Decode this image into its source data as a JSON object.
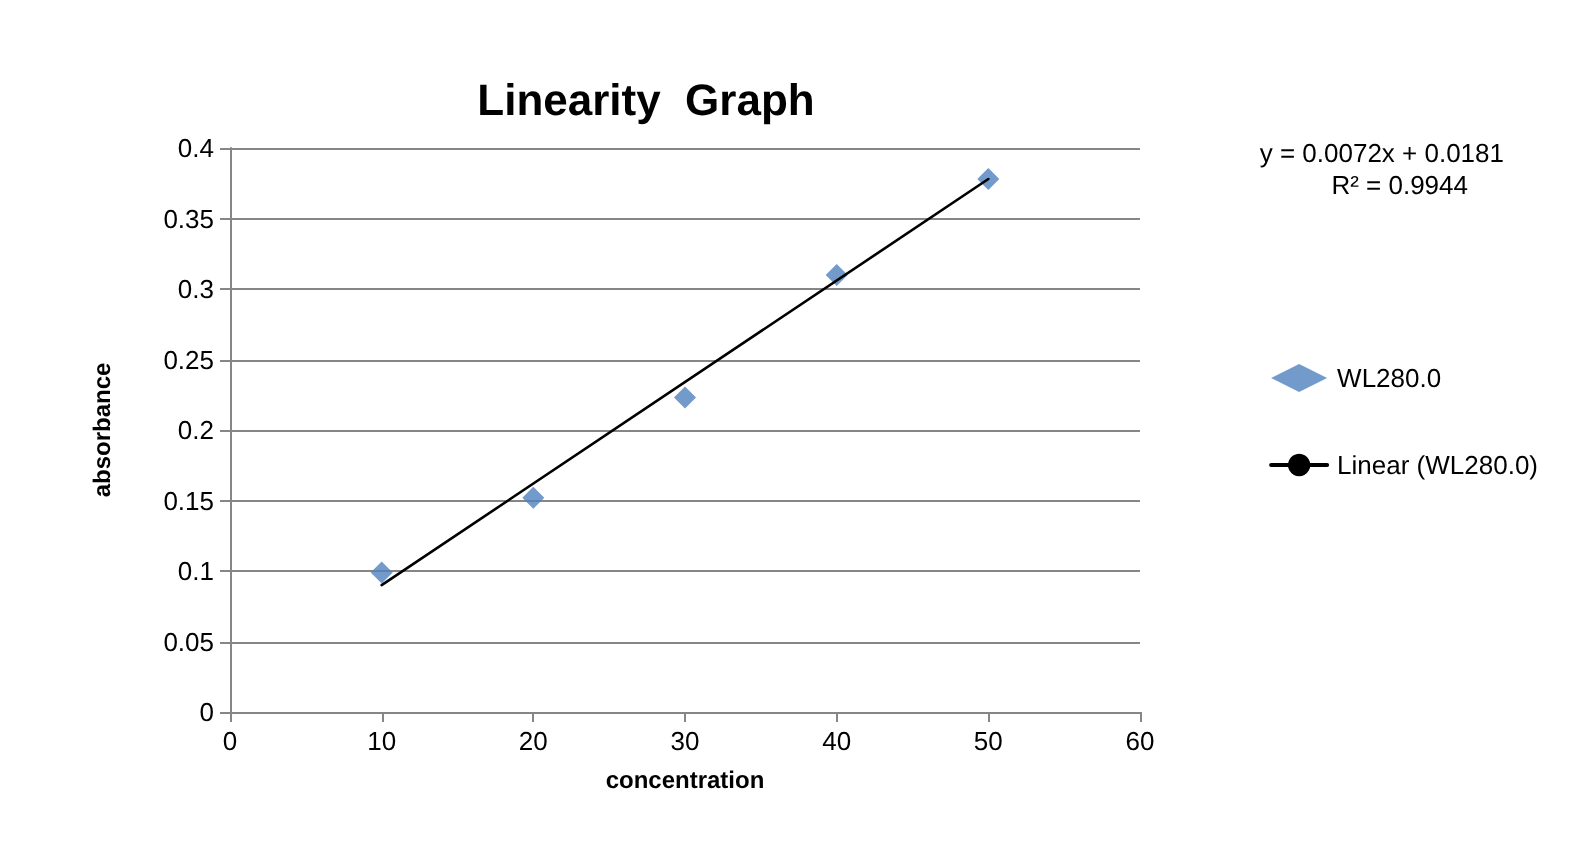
{
  "chart_data": {
    "type": "scatter",
    "title": "Linearity  Graph",
    "xlabel": "concentration",
    "ylabel": "absorbance",
    "annotations": [
      "y = 0.0072x + 0.0181",
      "R² = 0.9944"
    ],
    "x": [
      10,
      20,
      30,
      40,
      50
    ],
    "series": [
      {
        "name": "WL280.0",
        "color": "#4f81bd",
        "values": [
          0.099,
          0.152,
          0.223,
          0.31,
          0.378
        ],
        "marker": "diamond"
      },
      {
        "name": "Linear (WL280.0)",
        "type": "line",
        "color": "#000000",
        "x": [
          10,
          50
        ],
        "values": [
          0.09,
          0.378
        ],
        "marker": "none",
        "line_style": "solid"
      }
    ],
    "xlim": [
      0,
      60
    ],
    "xticks": [
      0,
      10,
      20,
      30,
      40,
      50,
      60
    ],
    "ylim": [
      0,
      0.4
    ],
    "yticks": [
      0,
      0.05,
      0.1,
      0.15,
      0.2,
      0.25,
      0.3,
      0.35,
      0.4
    ],
    "grid": "y",
    "legend": "right"
  }
}
